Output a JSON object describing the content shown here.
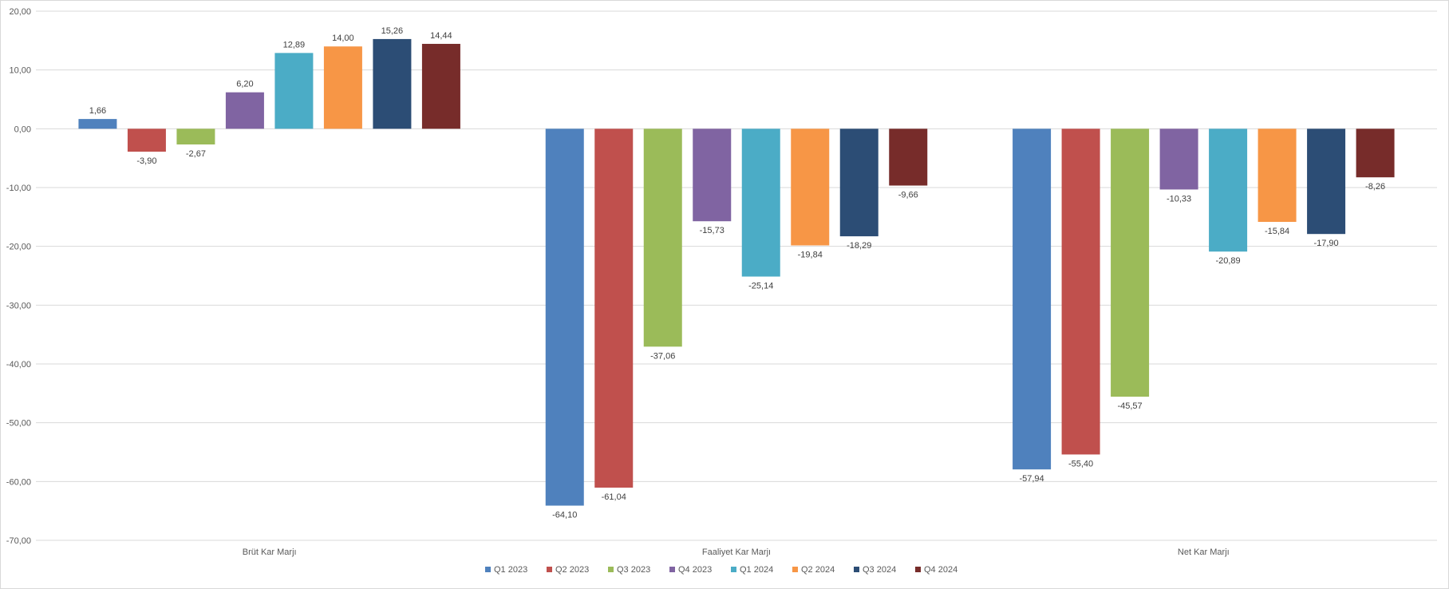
{
  "chart_data": {
    "type": "bar",
    "title": "",
    "xlabel": "",
    "ylabel": "",
    "categories": [
      "Brüt Kar Marjı",
      "Faaliyet Kar Marjı",
      "Net Kar Marjı"
    ],
    "ylim": [
      -70,
      20
    ],
    "yticks": [
      20,
      10,
      0,
      -10,
      -20,
      -30,
      -40,
      -50,
      -60,
      -70
    ],
    "ytick_labels": [
      "20,00",
      "10,00",
      "0,00",
      "-10,00",
      "-20,00",
      "-30,00",
      "-40,00",
      "-50,00",
      "-60,00",
      "-70,00"
    ],
    "grid": true,
    "legend_position": "bottom",
    "series": [
      {
        "name": "Q1 2023",
        "color": "#4f81bd",
        "values": [
          1.66,
          -64.1,
          -57.94
        ],
        "labels": [
          "1,66",
          "-64,10",
          "-57,94"
        ]
      },
      {
        "name": "Q2 2023",
        "color": "#c0504d",
        "values": [
          -3.9,
          -61.04,
          -55.4
        ],
        "labels": [
          "-3,90",
          "-61,04",
          "-55,40"
        ]
      },
      {
        "name": "Q3 2023",
        "color": "#9bbb59",
        "values": [
          -2.67,
          -37.06,
          -45.57
        ],
        "labels": [
          "-2,67",
          "-37,06",
          "-45,57"
        ]
      },
      {
        "name": "Q4 2023",
        "color": "#8064a2",
        "values": [
          6.2,
          -15.73,
          -10.33
        ],
        "labels": [
          "6,20",
          "-15,73",
          "-10,33"
        ]
      },
      {
        "name": "Q1 2024",
        "color": "#4bacc6",
        "values": [
          12.89,
          -25.14,
          -20.89
        ],
        "labels": [
          "12,89",
          "-25,14",
          "-20,89"
        ]
      },
      {
        "name": "Q2 2024",
        "color": "#f79646",
        "values": [
          14.0,
          -19.84,
          -15.84
        ],
        "labels": [
          "14,00",
          "-19,84",
          "-15,84"
        ]
      },
      {
        "name": "Q3 2024",
        "color": "#2c4d75",
        "values": [
          15.26,
          -18.29,
          -17.9
        ],
        "labels": [
          "15,26",
          "-18,29",
          "-17,90"
        ]
      },
      {
        "name": "Q4 2024",
        "color": "#772c2a",
        "values": [
          14.44,
          -9.66,
          -8.26
        ],
        "labels": [
          "14,44",
          "-9,66",
          "-8,26"
        ]
      }
    ]
  }
}
